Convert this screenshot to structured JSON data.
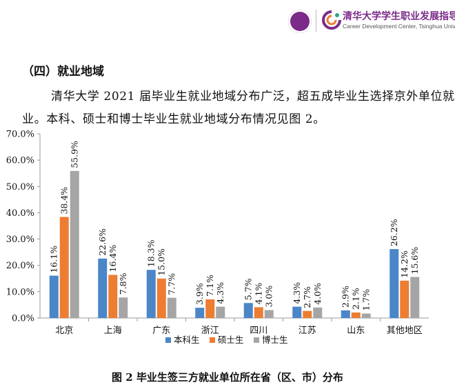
{
  "header": {
    "logo_cn": "清华大学学生职业发展指导中心",
    "logo_en": "Career Development Center, Tsinghua University"
  },
  "section_title": "（四）就业地域",
  "paragraph": {
    "line1": "清华大学 2021 届毕业生就业地域分布广泛，超五成毕业生选择京外单位就",
    "line2": "业。本科、硕士和博士毕业生就业地域分布情况见图 2。"
  },
  "chart_data": {
    "type": "bar",
    "categories": [
      "北京",
      "上海",
      "广东",
      "浙江",
      "四川",
      "江苏",
      "山东",
      "其他地区"
    ],
    "series": [
      {
        "name": "本科生",
        "color": "#4a86c8",
        "values": [
          16.1,
          22.6,
          18.3,
          3.9,
          5.7,
          4.3,
          2.9,
          26.2
        ],
        "labels": [
          "16.1%",
          "22.6%",
          "18.3%",
          "3.9%",
          "5.7%",
          "4.3%",
          "2.9%",
          "26.2%"
        ]
      },
      {
        "name": "硕士生",
        "color": "#ed7d31",
        "values": [
          38.4,
          16.4,
          15.0,
          7.1,
          4.1,
          2.7,
          2.1,
          14.2
        ],
        "labels": [
          "38.4%",
          "16.4%",
          "15.0%",
          "7.1%",
          "4.1%",
          "2.7%",
          "2.1%",
          "14.2%"
        ]
      },
      {
        "name": "博士生",
        "color": "#a5a5a5",
        "values": [
          55.9,
          7.8,
          7.7,
          4.3,
          3.0,
          4.0,
          1.7,
          15.6
        ],
        "labels": [
          "55.9%",
          "7.8%",
          "7.7%",
          "4.3%",
          "3.0%",
          "4.0%",
          "1.7%",
          "15.6%"
        ]
      }
    ],
    "ylim": [
      0,
      70
    ],
    "yticks": [
      0,
      10,
      20,
      30,
      40,
      50,
      60,
      70
    ],
    "ytick_labels": [
      "0.0%",
      "10.0%",
      "20.0%",
      "30.0%",
      "40.0%",
      "50.0%",
      "60.0%",
      "70.0%"
    ],
    "grid": false,
    "legend_position": "bottom",
    "title": "",
    "xlabel": "",
    "ylabel": ""
  },
  "caption": "图 2 毕业生签三方就业单位所在省（区、市）分布"
}
